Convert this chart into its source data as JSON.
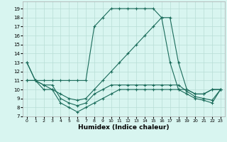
{
  "xlabel": "Humidex (Indice chaleur)",
  "bg_color": "#d8f5f0",
  "grid_color": "#b8ddd5",
  "line_color": "#1a6b5a",
  "xlim": [
    -0.5,
    23.5
  ],
  "ylim": [
    7,
    19.8
  ],
  "yticks": [
    7,
    8,
    9,
    10,
    11,
    12,
    13,
    14,
    15,
    16,
    17,
    18,
    19
  ],
  "xticks": [
    0,
    1,
    2,
    3,
    4,
    5,
    6,
    7,
    8,
    9,
    10,
    11,
    12,
    13,
    14,
    15,
    16,
    17,
    18,
    19,
    20,
    21,
    22,
    23
  ],
  "series": [
    {
      "x": [
        0,
        1,
        2,
        3,
        4,
        5,
        6,
        7,
        8,
        9,
        10,
        11,
        12,
        13,
        14,
        15,
        16,
        17,
        18,
        19,
        20,
        21,
        22,
        23
      ],
      "y": [
        13,
        11,
        11,
        11,
        11,
        11,
        11,
        11,
        17,
        18,
        19,
        19,
        19,
        19,
        19,
        19,
        18,
        13,
        10,
        10,
        9.5,
        9.5,
        10,
        10
      ]
    },
    {
      "x": [
        0,
        1,
        2,
        3,
        4,
        5,
        6,
        7,
        8,
        9,
        10,
        11,
        12,
        13,
        14,
        15,
        16,
        17,
        18,
        19,
        20,
        21,
        22,
        23
      ],
      "y": [
        13,
        11,
        10.5,
        10,
        9.5,
        9,
        8.8,
        9,
        10,
        11,
        12,
        13,
        14,
        15,
        16,
        17,
        18,
        18,
        13,
        10,
        9.5,
        9.5,
        10,
        10
      ]
    },
    {
      "x": [
        0,
        1,
        2,
        3,
        4,
        5,
        6,
        7,
        8,
        9,
        10,
        11,
        12,
        13,
        14,
        15,
        16,
        17,
        18,
        19,
        20,
        21,
        22,
        23
      ],
      "y": [
        11,
        11,
        10,
        10,
        8.5,
        8,
        7.5,
        8,
        8.5,
        9,
        9.5,
        10,
        10,
        10,
        10,
        10,
        10,
        10,
        10,
        9.5,
        9,
        8.8,
        8.5,
        10
      ]
    },
    {
      "x": [
        0,
        1,
        2,
        3,
        4,
        5,
        6,
        7,
        8,
        9,
        10,
        11,
        12,
        13,
        14,
        15,
        16,
        17,
        18,
        19,
        20,
        21,
        22,
        23
      ],
      "y": [
        11,
        11,
        10.5,
        10.5,
        9,
        8.5,
        8.2,
        8.5,
        9.5,
        10,
        10.5,
        10.5,
        10.5,
        10.5,
        10.5,
        10.5,
        10.5,
        10.5,
        10.5,
        9.8,
        9.2,
        9.0,
        8.8,
        10
      ]
    }
  ]
}
